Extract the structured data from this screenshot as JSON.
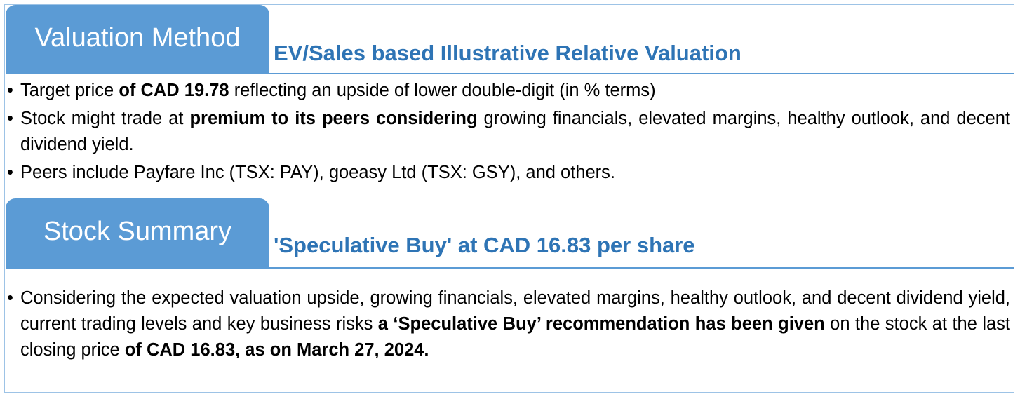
{
  "valuation": {
    "tab_label": "Valuation Method",
    "subtitle": "EV/Sales based Illustrative Relative Valuation",
    "bullets": [
      {
        "t1": "Target price ",
        "b1": "of CAD 19.78",
        "t2": " reflecting an upside of lower double-digit (in % terms)"
      },
      {
        "t1": "Stock might trade at ",
        "b1": "premium to its peers considering",
        "t2": " growing financials, elevated margins, healthy outlook, and decent dividend yield."
      },
      {
        "t1": "Peers include Payfare Inc (TSX: PAY), goeasy Ltd (TSX: GSY), and others."
      }
    ]
  },
  "summary": {
    "tab_label": "Stock Summary",
    "subtitle": "'Speculative Buy' at CAD 16.83 per share",
    "bullet": {
      "t1": "Considering the expected valuation upside, growing financials, elevated margins, healthy outlook, and decent dividend yield, current trading levels and key business risks ",
      "b1": "a ‘Speculative Buy’ recommendation has been given",
      "t2": " on the stock at the last closing price ",
      "b2": "of CAD 16.83, as on March 27, 2024."
    }
  }
}
